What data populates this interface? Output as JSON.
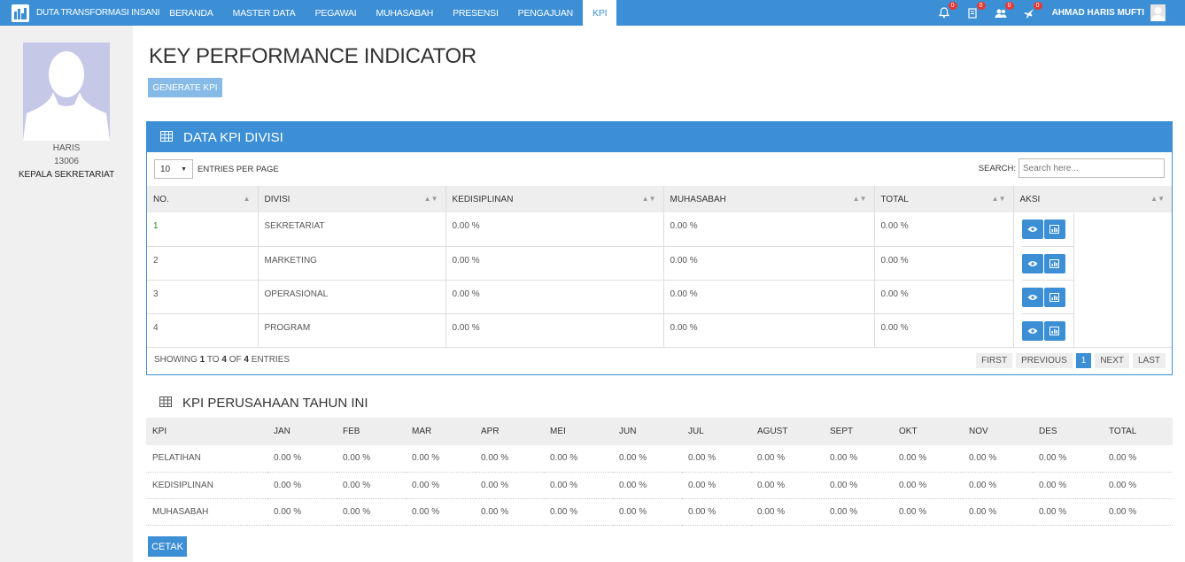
{
  "app": {
    "brand_name": "DUTA TRANSFORMASI INSANI",
    "menu": [
      "BERANDA",
      "MASTER DATA",
      "PEGAWAI",
      "MUHASABAH",
      "PRESENSI",
      "PENGAJUAN",
      "KPI"
    ],
    "active_menu": "KPI",
    "notif_counts": {
      "bell": "0",
      "book": "0",
      "users": "0",
      "plane": "0"
    },
    "user_name": "AHMAD HARIS MUFTI"
  },
  "profile": {
    "name": "HARIS",
    "id": "13006",
    "role": "KEPALA SEKRETARIAT"
  },
  "page": {
    "title": "KEY PERFORMANCE INDICATOR",
    "generate_label": "GENERATE KPI"
  },
  "division_panel": {
    "title": "DATA KPI DIVISI",
    "entries_value": "10",
    "entries_label": "ENTRIES PER PAGE",
    "search_label": "SEARCH:",
    "search_placeholder": "Search here...",
    "columns": [
      "NO.",
      "DIVISI",
      "KEDISIPLINAN",
      "MUHASABAH",
      "TOTAL",
      "AKSI"
    ],
    "rows": [
      {
        "no": "1",
        "divisi": "SEKRETARIAT",
        "kedisiplinan": "0.00 %",
        "muhasabah": "0.00 %",
        "total": "0.00 %"
      },
      {
        "no": "2",
        "divisi": "MARKETING",
        "kedisiplinan": "0.00 %",
        "muhasabah": "0.00 %",
        "total": "0.00 %"
      },
      {
        "no": "3",
        "divisi": "OPERASIONAL",
        "kedisiplinan": "0.00 %",
        "muhasabah": "0.00 %",
        "total": "0.00 %"
      },
      {
        "no": "4",
        "divisi": "PROGRAM",
        "kedisiplinan": "0.00 %",
        "muhasabah": "0.00 %",
        "total": "0.00 %"
      }
    ],
    "showing": {
      "prefix": "SHOWING",
      "from": "1",
      "to_word": "TO",
      "to": "4",
      "of_word": "OF",
      "total": "4",
      "suffix": "ENTRIES"
    },
    "pager": {
      "first": "FIRST",
      "previous": "PREVIOUS",
      "current": "1",
      "next": "NEXT",
      "last": "LAST"
    }
  },
  "company_panel": {
    "title": "KPI PERUSAHAAN TAHUN INI",
    "columns": [
      "KPI",
      "JAN",
      "FEB",
      "MAR",
      "APR",
      "MEI",
      "JUN",
      "JUL",
      "AGUST",
      "SEPT",
      "OKT",
      "NOV",
      "DES",
      "TOTAL"
    ],
    "rows": [
      [
        "PELATIHAN",
        "0.00 %",
        "0.00 %",
        "0.00 %",
        "0.00 %",
        "0.00 %",
        "0.00 %",
        "0.00 %",
        "0.00 %",
        "0.00 %",
        "0.00 %",
        "0.00 %",
        "0.00 %",
        "0.00 %"
      ],
      [
        "KEDISIPLINAN",
        "0.00 %",
        "0.00 %",
        "0.00 %",
        "0.00 %",
        "0.00 %",
        "0.00 %",
        "0.00 %",
        "0.00 %",
        "0.00 %",
        "0.00 %",
        "0.00 %",
        "0.00 %",
        "0.00 %"
      ],
      [
        "MUHASABAH",
        "0.00 %",
        "0.00 %",
        "0.00 %",
        "0.00 %",
        "0.00 %",
        "0.00 %",
        "0.00 %",
        "0.00 %",
        "0.00 %",
        "0.00 %",
        "0.00 %",
        "0.00 %",
        "0.00 %"
      ]
    ],
    "print_label": "CETAK"
  },
  "colors": {
    "primary": "#3c8fd4",
    "generate_btn": "#86bbe8",
    "sidebar_bg": "#f0f0f0",
    "badge": "#e53935"
  }
}
